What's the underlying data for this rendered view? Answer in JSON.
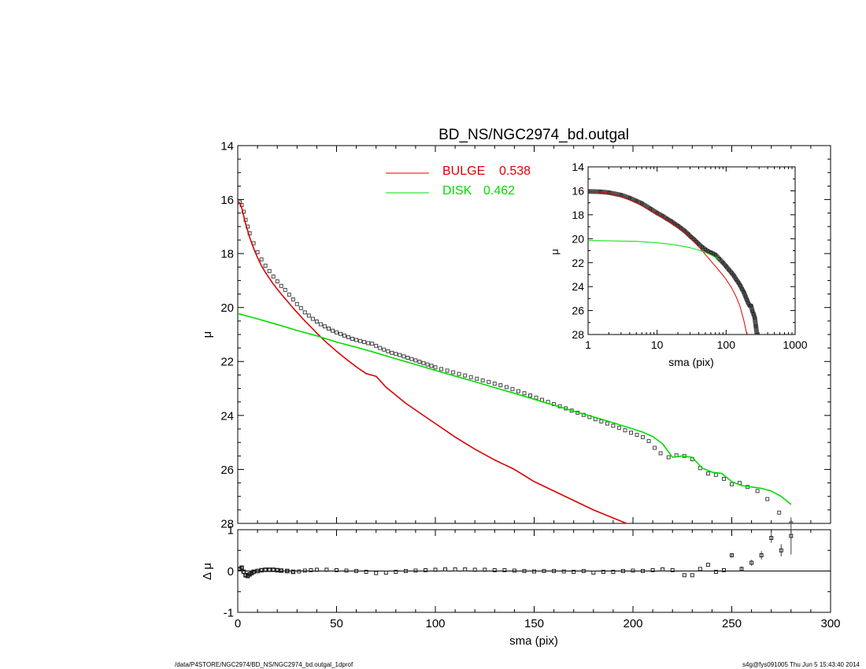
{
  "footer": {
    "path": "/data/P4STORE/NGC2974/BD_NS/NGC2974_bd.outgal_1dprof",
    "user_time": "s4g@fys091005  Thu Jun  5 15:43:40 2014"
  },
  "colors": {
    "bulge": "#dd0000",
    "disk": "#00dd00",
    "data": "#000000"
  },
  "chart_data": [
    {
      "id": "main",
      "type": "line",
      "title": "BD_NS/NGC2974_bd.outgal",
      "xlabel": "",
      "ylabel": "μ",
      "xlim": [
        0,
        300
      ],
      "ylim": [
        28,
        14
      ],
      "y_reversed": true,
      "x_ticks": [
        0,
        50,
        100,
        150,
        200,
        250,
        300
      ],
      "y_ticks": [
        14,
        16,
        18,
        20,
        22,
        24,
        26,
        28
      ],
      "legend": {
        "placement": "top-center",
        "entries": [
          {
            "label": "BULGE",
            "value": "0.538",
            "color": "#dd0000"
          },
          {
            "label": "DISK",
            "value": "0.462",
            "color": "#00dd00"
          }
        ]
      },
      "series": [
        {
          "name": "data",
          "style": "squares",
          "x": [
            1,
            2,
            3,
            4,
            5,
            6,
            8,
            10,
            12,
            14,
            16,
            18,
            20,
            22,
            24,
            26,
            28,
            30,
            32,
            34,
            36,
            38,
            40,
            42,
            44,
            46,
            48,
            50,
            52,
            54,
            56,
            58,
            60,
            62,
            64,
            66,
            68,
            70,
            72,
            74,
            76,
            78,
            80,
            82,
            84,
            86,
            88,
            90,
            92,
            94,
            96,
            98,
            100,
            103,
            106,
            109,
            112,
            115,
            118,
            121,
            124,
            127,
            130,
            133,
            136,
            139,
            142,
            145,
            148,
            151,
            154,
            157,
            160,
            163,
            166,
            169,
            172,
            175,
            178,
            181,
            184,
            187,
            190,
            193,
            196,
            199,
            202,
            205,
            208,
            211,
            214,
            218,
            222,
            226,
            230,
            234,
            238,
            242,
            246,
            250,
            254,
            258,
            263,
            268,
            274,
            280
          ],
          "y": [
            16.1,
            16.2,
            16.45,
            16.75,
            17.0,
            17.25,
            17.62,
            17.95,
            18.22,
            18.45,
            18.65,
            18.85,
            19.03,
            19.2,
            19.35,
            19.52,
            19.7,
            19.87,
            20.02,
            20.18,
            20.3,
            20.42,
            20.52,
            20.62,
            20.7,
            20.78,
            20.86,
            20.92,
            20.98,
            21.04,
            21.1,
            21.16,
            21.2,
            21.24,
            21.28,
            21.32,
            21.34,
            21.42,
            21.5,
            21.56,
            21.62,
            21.68,
            21.72,
            21.76,
            21.81,
            21.86,
            21.91,
            21.96,
            22.01,
            22.06,
            22.11,
            22.16,
            22.22,
            22.28,
            22.34,
            22.4,
            22.46,
            22.52,
            22.58,
            22.64,
            22.7,
            22.76,
            22.82,
            22.88,
            22.95,
            23.02,
            23.1,
            23.18,
            23.26,
            23.34,
            23.42,
            23.5,
            23.58,
            23.66,
            23.74,
            23.82,
            23.9,
            23.98,
            24.06,
            24.14,
            24.22,
            24.3,
            24.38,
            24.46,
            24.55,
            24.64,
            24.72,
            24.8,
            24.95,
            25.2,
            25.4,
            25.55,
            25.48,
            25.5,
            25.62,
            25.95,
            26.15,
            26.2,
            26.35,
            26.55,
            26.5,
            26.65,
            26.8,
            27.1,
            27.6,
            28.0
          ]
        },
        {
          "name": "BULGE",
          "color": "#dd0000",
          "x": [
            0,
            1,
            2,
            3,
            4,
            5,
            6,
            8,
            10,
            12,
            14,
            16,
            18,
            20,
            22,
            25,
            28,
            31,
            34,
            37,
            40,
            45,
            50,
            55,
            60,
            65,
            70,
            75,
            80,
            85,
            90,
            95,
            100,
            110,
            120,
            130,
            140,
            150,
            160,
            170,
            180,
            190,
            200
          ],
          "y": [
            16.1,
            16.12,
            16.3,
            16.6,
            16.9,
            17.15,
            17.4,
            17.8,
            18.15,
            18.45,
            18.7,
            18.92,
            19.13,
            19.32,
            19.5,
            19.76,
            20.02,
            20.26,
            20.5,
            20.72,
            20.95,
            21.3,
            21.62,
            21.92,
            22.2,
            22.45,
            22.55,
            22.95,
            23.25,
            23.55,
            23.8,
            24.05,
            24.3,
            24.8,
            25.25,
            25.65,
            26.0,
            26.45,
            26.8,
            27.15,
            27.5,
            27.8,
            28.1
          ]
        },
        {
          "name": "DISK",
          "color": "#00dd00",
          "x": [
            0,
            10,
            20,
            30,
            40,
            50,
            60,
            70,
            80,
            90,
            100,
            110,
            120,
            130,
            140,
            150,
            160,
            170,
            180,
            190,
            200,
            205,
            210,
            215,
            220,
            225,
            230,
            235,
            240,
            245,
            250,
            255,
            260,
            265,
            270,
            275,
            280
          ],
          "y": [
            20.22,
            20.42,
            20.63,
            20.85,
            21.05,
            21.28,
            21.47,
            21.68,
            21.9,
            22.11,
            22.33,
            22.54,
            22.75,
            22.97,
            23.18,
            23.4,
            23.62,
            23.84,
            24.05,
            24.27,
            24.5,
            24.62,
            24.78,
            25.05,
            25.55,
            25.5,
            25.55,
            25.95,
            26.1,
            26.15,
            26.45,
            26.6,
            26.65,
            26.7,
            26.8,
            27.0,
            27.3
          ]
        }
      ]
    },
    {
      "id": "residual",
      "type": "scatter",
      "xlabel": "sma (pix)",
      "ylabel": "Δ μ",
      "xlim": [
        0,
        300
      ],
      "ylim": [
        -1,
        1
      ],
      "x_ticks": [
        0,
        50,
        100,
        150,
        200,
        250,
        300
      ],
      "y_ticks": [
        -1,
        0,
        1
      ],
      "zero_line": true,
      "points": {
        "x": [
          1,
          2,
          3,
          4,
          5,
          6,
          7,
          8,
          10,
          12,
          14,
          16,
          18,
          20,
          22,
          25,
          28,
          31,
          34,
          37,
          40,
          45,
          50,
          55,
          60,
          65,
          70,
          75,
          80,
          85,
          90,
          95,
          100,
          105,
          110,
          115,
          120,
          125,
          130,
          135,
          140,
          145,
          150,
          155,
          160,
          165,
          170,
          175,
          180,
          185,
          190,
          195,
          200,
          205,
          210,
          215,
          220,
          226,
          230,
          234,
          238,
          242,
          246,
          250,
          255,
          260,
          265,
          270,
          275,
          280
        ],
        "y": [
          0.05,
          0.08,
          -0.02,
          -0.1,
          -0.12,
          -0.08,
          -0.05,
          -0.02,
          0.0,
          0.02,
          0.03,
          0.03,
          0.03,
          0.02,
          0.01,
          0.0,
          -0.02,
          -0.01,
          0.01,
          0.02,
          0.03,
          0.03,
          0.02,
          0.01,
          0.0,
          -0.02,
          -0.05,
          -0.04,
          -0.02,
          0.0,
          0.01,
          0.02,
          0.03,
          0.04,
          0.04,
          0.04,
          0.03,
          0.03,
          0.02,
          0.02,
          0.01,
          0.0,
          -0.01,
          0.0,
          0.0,
          -0.01,
          -0.02,
          0.0,
          -0.04,
          -0.02,
          -0.02,
          0.0,
          0.01,
          0.0,
          0.02,
          0.04,
          0.02,
          -0.1,
          -0.1,
          0.05,
          0.15,
          -0.02,
          0.02,
          0.38,
          0.05,
          0.2,
          0.38,
          0.8,
          0.5,
          0.85
        ],
        "err": [
          0,
          0,
          0,
          0,
          0,
          0,
          0,
          0,
          0,
          0,
          0,
          0,
          0,
          0,
          0,
          0,
          0,
          0,
          0,
          0,
          0,
          0,
          0,
          0,
          0,
          0,
          0,
          0,
          0,
          0,
          0,
          0,
          0,
          0,
          0,
          0,
          0,
          0,
          0,
          0,
          0,
          0,
          0,
          0,
          0,
          0,
          0,
          0,
          0,
          0,
          0,
          0,
          0,
          0,
          0,
          0,
          0,
          0,
          0,
          0,
          0,
          0,
          0,
          0.05,
          0.06,
          0.07,
          0.1,
          0.12,
          0.15,
          0.45
        ]
      }
    },
    {
      "id": "inset",
      "type": "line",
      "xlabel": "sma (pix)",
      "ylabel": "μ",
      "x_log": true,
      "xlim": [
        1,
        1000
      ],
      "ylim": [
        28,
        14
      ],
      "y_reversed": true,
      "x_ticks": [
        1,
        10,
        100,
        1000
      ],
      "y_ticks": [
        14,
        16,
        18,
        20,
        22,
        24,
        26,
        28
      ],
      "series": [
        {
          "name": "data",
          "style": "thick",
          "x": [
            1,
            1.5,
            2,
            3,
            4,
            5,
            6,
            8,
            10,
            12,
            14,
            16,
            18,
            20,
            22,
            25,
            28,
            31,
            34,
            37,
            40,
            45,
            50,
            55,
            60,
            65,
            70,
            80,
            90,
            100,
            110,
            120,
            130,
            140,
            150,
            160,
            170,
            180,
            190,
            200,
            210,
            220,
            230,
            240,
            250,
            260,
            270,
            280
          ],
          "y": [
            16.05,
            16.08,
            16.15,
            16.35,
            16.6,
            16.85,
            17.05,
            17.5,
            17.85,
            18.1,
            18.35,
            18.55,
            18.75,
            18.92,
            19.1,
            19.35,
            19.6,
            19.85,
            20.05,
            20.25,
            20.45,
            20.7,
            20.9,
            21.05,
            21.15,
            21.25,
            21.35,
            21.7,
            22.0,
            22.3,
            22.6,
            22.85,
            23.1,
            23.4,
            23.65,
            23.9,
            24.2,
            24.45,
            24.8,
            25.1,
            25.4,
            25.6,
            25.6,
            26.05,
            26.3,
            26.6,
            27.3,
            28.0
          ]
        },
        {
          "name": "BULGE",
          "color": "#dd0000",
          "x": [
            1,
            1.5,
            2,
            3,
            4,
            5,
            6,
            8,
            10,
            12,
            14,
            16,
            18,
            20,
            22,
            25,
            28,
            31,
            34,
            37,
            40,
            45,
            50,
            55,
            60,
            65,
            70,
            80,
            90,
            100,
            120,
            140,
            160,
            180,
            200
          ],
          "y": [
            16.05,
            16.1,
            16.2,
            16.45,
            16.75,
            17.0,
            17.25,
            17.62,
            17.95,
            18.22,
            18.45,
            18.65,
            18.85,
            19.03,
            19.2,
            19.45,
            19.7,
            19.95,
            20.2,
            20.42,
            20.65,
            21.0,
            21.32,
            21.6,
            21.85,
            22.1,
            22.3,
            22.7,
            23.05,
            23.4,
            24.1,
            24.85,
            25.7,
            26.8,
            28.0
          ]
        },
        {
          "name": "DISK",
          "color": "#00dd00",
          "x": [
            1,
            2,
            3,
            5,
            8,
            10,
            15,
            20,
            30,
            40,
            50,
            60,
            70,
            80
          ],
          "y": [
            20.15,
            20.18,
            20.2,
            20.22,
            20.3,
            20.35,
            20.45,
            20.55,
            20.75,
            20.95,
            21.15,
            21.35,
            21.55,
            21.75
          ]
        }
      ]
    }
  ]
}
